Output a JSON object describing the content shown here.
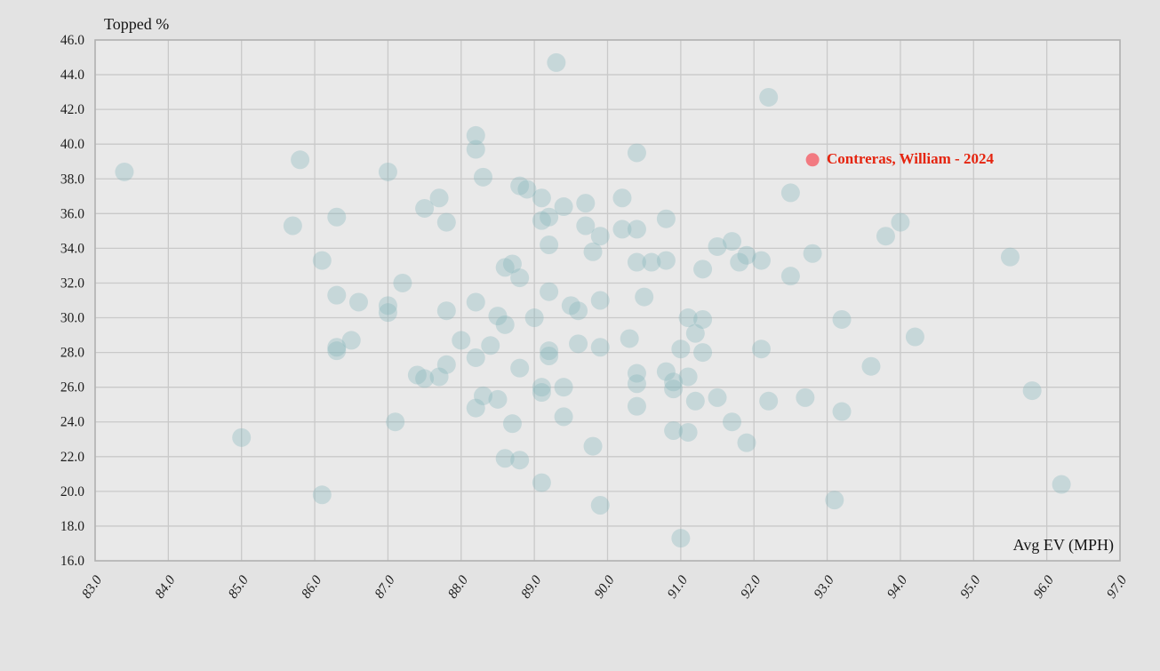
{
  "chart_data": {
    "type": "scatter",
    "title": "",
    "xlabel": "Avg EV (MPH)",
    "ylabel": "Topped %",
    "xlim": [
      83.0,
      97.0
    ],
    "ylim": [
      16.0,
      46.0
    ],
    "grid": true,
    "legend": "none",
    "x_ticks": [
      "83.0",
      "84.0",
      "85.0",
      "86.0",
      "87.0",
      "88.0",
      "89.0",
      "90.0",
      "91.0",
      "92.0",
      "93.0",
      "94.0",
      "95.0",
      "96.0",
      "97.0"
    ],
    "y_ticks": [
      "16.0",
      "18.0",
      "20.0",
      "22.0",
      "24.0",
      "26.0",
      "28.0",
      "30.0",
      "32.0",
      "34.0",
      "36.0",
      "38.0",
      "40.0",
      "42.0",
      "44.0",
      "46.0"
    ],
    "point_color": "#7fb2b9",
    "point_opacity": 0.33,
    "plot_bg": "#e9e9e9",
    "grid_color": "#c9c9c9",
    "border_color": "#b2b2b2",
    "highlight": {
      "label": "Contreras, William - 2024",
      "x": 92.8,
      "y": 39.1,
      "dot_color": "#f2747b",
      "label_color": "#e5240f"
    },
    "points": [
      [
        83.4,
        38.4
      ],
      [
        85.8,
        39.1
      ],
      [
        87.0,
        38.4
      ],
      [
        88.2,
        40.5
      ],
      [
        88.2,
        39.7
      ],
      [
        88.3,
        38.1
      ],
      [
        89.3,
        44.7
      ],
      [
        92.2,
        42.7
      ],
      [
        90.4,
        39.5
      ],
      [
        88.8,
        37.6
      ],
      [
        88.9,
        37.4
      ],
      [
        89.1,
        36.9
      ],
      [
        89.4,
        36.4
      ],
      [
        89.7,
        36.6
      ],
      [
        90.2,
        36.9
      ],
      [
        92.5,
        37.2
      ],
      [
        87.5,
        36.3
      ],
      [
        87.7,
        36.9
      ],
      [
        86.3,
        35.8
      ],
      [
        85.7,
        35.3
      ],
      [
        87.8,
        35.5
      ],
      [
        89.1,
        35.6
      ],
      [
        89.2,
        35.8
      ],
      [
        89.7,
        35.3
      ],
      [
        90.2,
        35.1
      ],
      [
        90.4,
        35.1
      ],
      [
        90.8,
        35.7
      ],
      [
        94.0,
        35.5
      ],
      [
        93.8,
        34.7
      ],
      [
        89.9,
        34.7
      ],
      [
        89.2,
        34.2
      ],
      [
        91.5,
        34.1
      ],
      [
        91.7,
        34.4
      ],
      [
        86.1,
        33.3
      ],
      [
        89.8,
        33.8
      ],
      [
        90.4,
        33.2
      ],
      [
        90.6,
        33.2
      ],
      [
        90.8,
        33.3
      ],
      [
        91.3,
        32.8
      ],
      [
        91.8,
        33.2
      ],
      [
        91.9,
        33.6
      ],
      [
        92.1,
        33.3
      ],
      [
        92.8,
        33.7
      ],
      [
        95.5,
        33.5
      ],
      [
        87.2,
        32.0
      ],
      [
        86.3,
        31.3
      ],
      [
        86.6,
        30.9
      ],
      [
        88.6,
        32.9
      ],
      [
        88.7,
        33.1
      ],
      [
        88.8,
        32.3
      ],
      [
        89.2,
        31.5
      ],
      [
        90.5,
        31.2
      ],
      [
        88.2,
        30.9
      ],
      [
        92.5,
        32.4
      ],
      [
        87.0,
        30.7
      ],
      [
        87.0,
        30.3
      ],
      [
        87.8,
        30.4
      ],
      [
        88.5,
        30.1
      ],
      [
        88.6,
        29.6
      ],
      [
        89.0,
        30.0
      ],
      [
        89.5,
        30.7
      ],
      [
        89.6,
        30.4
      ],
      [
        89.9,
        31.0
      ],
      [
        91.1,
        30.0
      ],
      [
        91.3,
        29.9
      ],
      [
        91.2,
        29.1
      ],
      [
        93.2,
        29.9
      ],
      [
        94.2,
        28.9
      ],
      [
        86.5,
        28.7
      ],
      [
        86.3,
        28.3
      ],
      [
        86.3,
        28.1
      ],
      [
        88.0,
        28.7
      ],
      [
        88.4,
        28.4
      ],
      [
        88.2,
        27.7
      ],
      [
        87.8,
        27.3
      ],
      [
        89.2,
        28.1
      ],
      [
        89.2,
        27.8
      ],
      [
        89.6,
        28.5
      ],
      [
        89.9,
        28.3
      ],
      [
        90.3,
        28.8
      ],
      [
        91.0,
        28.2
      ],
      [
        91.3,
        28.0
      ],
      [
        92.1,
        28.2
      ],
      [
        88.8,
        27.1
      ],
      [
        87.4,
        26.7
      ],
      [
        87.5,
        26.5
      ],
      [
        87.7,
        26.6
      ],
      [
        89.1,
        26.0
      ],
      [
        89.4,
        26.0
      ],
      [
        89.1,
        25.7
      ],
      [
        90.4,
        26.8
      ],
      [
        90.4,
        26.2
      ],
      [
        90.8,
        26.9
      ],
      [
        90.9,
        26.3
      ],
      [
        90.9,
        25.9
      ],
      [
        91.1,
        26.6
      ],
      [
        93.6,
        27.2
      ],
      [
        88.3,
        25.5
      ],
      [
        88.5,
        25.3
      ],
      [
        91.2,
        25.2
      ],
      [
        91.5,
        25.4
      ],
      [
        92.2,
        25.2
      ],
      [
        92.7,
        25.4
      ],
      [
        95.8,
        25.8
      ],
      [
        88.2,
        24.8
      ],
      [
        88.7,
        23.9
      ],
      [
        89.4,
        24.3
      ],
      [
        90.4,
        24.9
      ],
      [
        91.7,
        24.0
      ],
      [
        93.2,
        24.6
      ],
      [
        87.1,
        24.0
      ],
      [
        85.0,
        23.1
      ],
      [
        90.9,
        23.5
      ],
      [
        91.1,
        23.4
      ],
      [
        91.9,
        22.8
      ],
      [
        88.6,
        21.9
      ],
      [
        88.8,
        21.8
      ],
      [
        89.1,
        20.5
      ],
      [
        89.8,
        22.6
      ],
      [
        86.1,
        19.8
      ],
      [
        89.9,
        19.2
      ],
      [
        93.1,
        19.5
      ],
      [
        96.2,
        20.4
      ],
      [
        91.0,
        17.3
      ]
    ]
  }
}
